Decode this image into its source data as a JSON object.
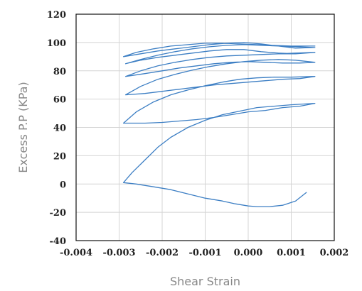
{
  "chart_data": {
    "type": "line",
    "xlabel": "Shear Strain",
    "ylabel": "Excess P.P (KPa)",
    "xlim": [
      -0.004,
      0.002
    ],
    "ylim": [
      -40,
      120
    ],
    "xticks": [
      "-0.004",
      "-0.003",
      "-0.002",
      "-0.001",
      "0.000",
      "0.001",
      "0.002"
    ],
    "yticks": [
      "-40",
      "-20",
      "0",
      "20",
      "40",
      "60",
      "80",
      "100",
      "120"
    ],
    "grid": true,
    "series": [
      {
        "color": "#3d7fc4",
        "x": [
          0.00135,
          0.0011,
          0.0008,
          0.0005,
          0.0002,
          0.0,
          -0.0003,
          -0.0006,
          -0.001,
          -0.0014,
          -0.0018,
          -0.0022,
          -0.0026,
          -0.0029,
          -0.0027,
          -0.0024,
          -0.0021,
          -0.0018,
          -0.0014,
          -0.001,
          -0.0006,
          -0.0002,
          0.0002,
          0.0006,
          0.001,
          0.00155,
          0.0012,
          0.0008,
          0.0004,
          0.0,
          -0.0004,
          -0.0008,
          -0.0012,
          -0.0016,
          -0.002,
          -0.0024,
          -0.0029,
          -0.0026,
          -0.0022,
          -0.0018,
          -0.0014,
          -0.001,
          -0.0006,
          -0.0002,
          0.0002,
          0.0006,
          0.001,
          0.00155,
          0.0012,
          0.0008,
          0.0004,
          0.0,
          -0.0004,
          -0.0008,
          -0.0012,
          -0.0016,
          -0.002,
          -0.0024,
          -0.00285,
          -0.0025,
          -0.0021,
          -0.0017,
          -0.0013,
          -0.0009,
          -0.0005,
          -0.0001,
          0.0003,
          0.0007,
          0.0011,
          0.00155,
          0.0012,
          0.0008,
          0.0004,
          0.0,
          -0.0004,
          -0.0008,
          -0.0012,
          -0.0016,
          -0.002,
          -0.0024,
          -0.00285,
          -0.0025,
          -0.0021,
          -0.0017,
          -0.0013,
          -0.0009,
          -0.0005,
          -0.0001,
          0.0003,
          0.0007,
          0.0011,
          0.00155,
          0.0011,
          0.0007,
          0.0003,
          -0.0001,
          -0.0005,
          -0.0009,
          -0.0013,
          -0.0017,
          -0.0021,
          -0.0025,
          -0.00285,
          -0.0025,
          -0.0021,
          -0.0017,
          -0.0013,
          -0.0009,
          -0.0005,
          -0.0001,
          0.0003,
          0.0007,
          0.0011,
          0.00155,
          0.0011,
          0.0007,
          0.0003,
          -0.0001,
          -0.0005,
          -0.0009,
          -0.0013,
          -0.0017,
          -0.0021,
          -0.0025,
          -0.0029,
          -0.0026,
          -0.0022,
          -0.0018,
          -0.0014,
          -0.001,
          -0.0006,
          -0.0002,
          0.0002,
          0.0006,
          0.001,
          0.00155
        ],
        "y": [
          -6,
          -12,
          -15,
          -16,
          -16,
          -15.5,
          -14,
          -12,
          -10,
          -7,
          -4,
          -2,
          0,
          1,
          8,
          17,
          26,
          33,
          40,
          45,
          49,
          51.5,
          54,
          55,
          56,
          57,
          55,
          54,
          52,
          51,
          49,
          47,
          45.5,
          44.5,
          43.5,
          43,
          43,
          51,
          58,
          63,
          66.5,
          69.5,
          72,
          74,
          75,
          75.5,
          75.5,
          76,
          74.5,
          74,
          73,
          72,
          71,
          70,
          68.5,
          67,
          65.5,
          64,
          63,
          69,
          74,
          77.5,
          80.5,
          83,
          85,
          86.5,
          87.5,
          88,
          87.5,
          86,
          85.5,
          85.5,
          86,
          86.5,
          86,
          85,
          83.5,
          82,
          80,
          78,
          76,
          80,
          83.5,
          86,
          88,
          89.5,
          90.5,
          91,
          91.5,
          92,
          92.5,
          93,
          92,
          92.5,
          93.5,
          95,
          95,
          94,
          92.5,
          91,
          89.5,
          87.5,
          85,
          88,
          91,
          93.5,
          95.5,
          97,
          98,
          98.5,
          98,
          97.5,
          97,
          96.5,
          96,
          97.5,
          99,
          100,
          99.5,
          98.5,
          97,
          95.5,
          94,
          92,
          90,
          93,
          95.5,
          97.5,
          98.5,
          99.5,
          99.5,
          99,
          98.5,
          98,
          97.5,
          97.5
        ]
      }
    ]
  }
}
